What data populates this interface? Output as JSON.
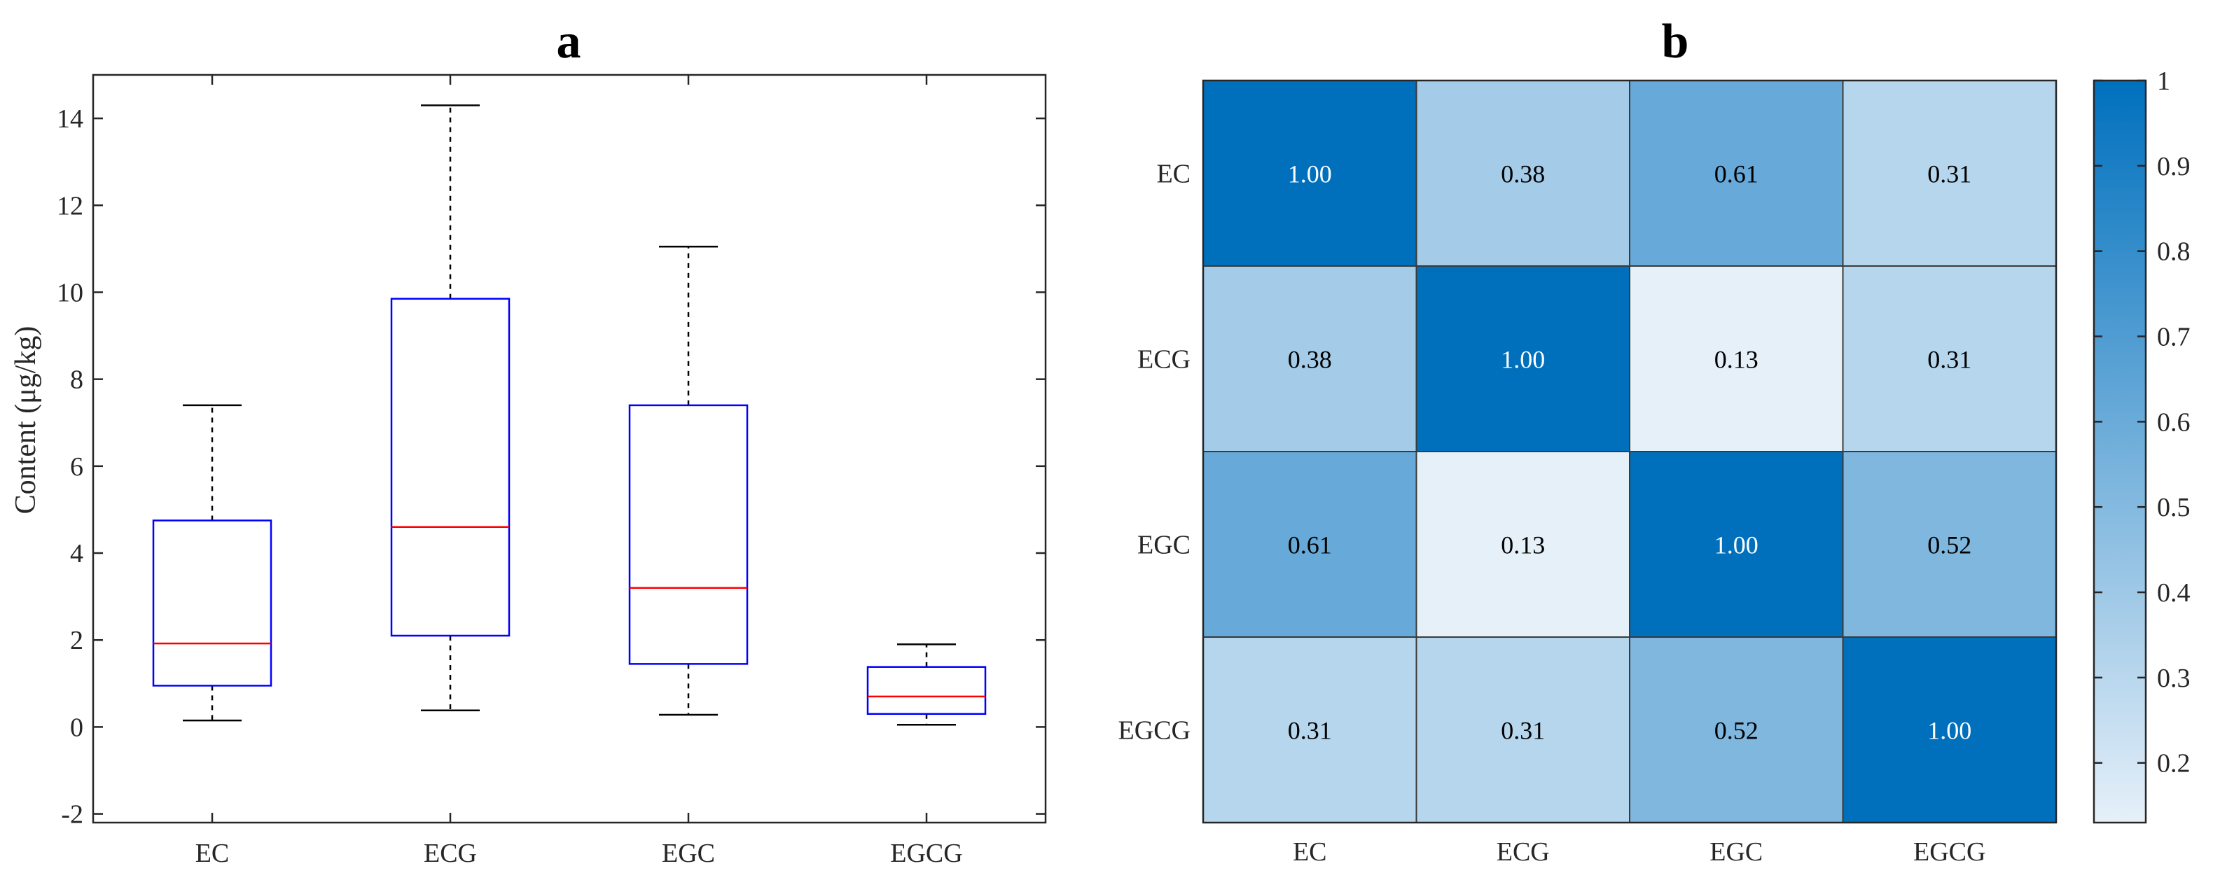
{
  "chart_data": [
    {
      "panel": "a",
      "type": "box",
      "title": "a",
      "xlabel": "",
      "ylabel": "Content (μg/kg)",
      "ylim": [
        -2.2,
        15
      ],
      "yticks": [
        -2,
        0,
        2,
        4,
        6,
        8,
        10,
        12,
        14
      ],
      "categories": [
        "EC",
        "ECG",
        "EGC",
        "EGCG"
      ],
      "boxes": [
        {
          "name": "EC",
          "whisker_low": 0.15,
          "q1": 0.95,
          "median": 1.92,
          "q3": 4.75,
          "whisker_high": 7.4
        },
        {
          "name": "ECG",
          "whisker_low": 0.38,
          "q1": 2.1,
          "median": 4.6,
          "q3": 9.85,
          "whisker_high": 14.3
        },
        {
          "name": "EGC",
          "whisker_low": 0.28,
          "q1": 1.45,
          "median": 3.2,
          "q3": 7.4,
          "whisker_high": 11.05
        },
        {
          "name": "EGCG",
          "whisker_low": 0.05,
          "q1": 0.3,
          "median": 0.7,
          "q3": 1.38,
          "whisker_high": 1.9
        }
      ],
      "colors": {
        "box": "#0000ff",
        "median": "#ff0000",
        "whisker": "#000000"
      }
    },
    {
      "panel": "b",
      "type": "heatmap",
      "title": "b",
      "row_labels": [
        "EC",
        "ECG",
        "EGC",
        "EGCG"
      ],
      "col_labels": [
        "EC",
        "ECG",
        "EGC",
        "EGCG"
      ],
      "values": [
        [
          1.0,
          0.38,
          0.61,
          0.31
        ],
        [
          0.38,
          1.0,
          0.13,
          0.31
        ],
        [
          0.61,
          0.13,
          1.0,
          0.52
        ],
        [
          0.31,
          0.31,
          0.52,
          1.0
        ]
      ],
      "value_labels": [
        [
          "1.00",
          "0.38",
          "0.61",
          "0.31"
        ],
        [
          "0.38",
          "1.00",
          "0.13",
          "0.31"
        ],
        [
          "0.61",
          "0.13",
          "1.00",
          "0.52"
        ],
        [
          "0.31",
          "0.31",
          "0.52",
          "1.00"
        ]
      ],
      "colorbar": {
        "range": [
          0.13,
          1
        ],
        "ticks": [
          0.2,
          0.3,
          0.4,
          0.5,
          0.6,
          0.7,
          0.8,
          0.9,
          1
        ],
        "tick_labels": [
          "0.2",
          "0.3",
          "0.4",
          "0.5",
          "0.6",
          "0.7",
          "0.8",
          "0.9",
          "1"
        ],
        "color_low": "#e6f0f9",
        "color_high": "#0070bd"
      }
    }
  ]
}
